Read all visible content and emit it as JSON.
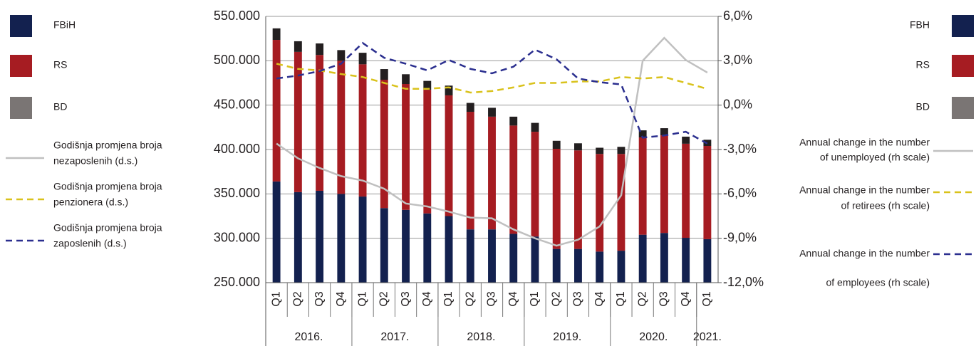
{
  "chart_data": {
    "type": "bar",
    "categories": [
      "Q1",
      "Q2",
      "Q3",
      "Q4",
      "Q1",
      "Q2",
      "Q3",
      "Q4",
      "Q1",
      "Q2",
      "Q3",
      "Q4",
      "Q1",
      "Q2",
      "Q3",
      "Q4",
      "Q1",
      "Q2",
      "Q3",
      "Q4",
      "Q1"
    ],
    "year_groups": [
      {
        "label": "2016.",
        "span": 4
      },
      {
        "label": "2017.",
        "span": 4
      },
      {
        "label": "2018.",
        "span": 4
      },
      {
        "label": "2019.",
        "span": 4
      },
      {
        "label": "2020.",
        "span": 4
      },
      {
        "label": "2021.",
        "span": 1
      }
    ],
    "ylim": [
      250000,
      550000
    ],
    "yticks": [
      {
        "value": 250000,
        "label": "250.000"
      },
      {
        "value": 300000,
        "label": "300.000"
      },
      {
        "value": 350000,
        "label": "350.000"
      },
      {
        "value": 400000,
        "label": "400.000"
      },
      {
        "value": 450000,
        "label": "450.000"
      },
      {
        "value": 500000,
        "label": "500.000"
      },
      {
        "value": 550000,
        "label": "550.000"
      }
    ],
    "y2lim": [
      -12,
      6
    ],
    "y2ticks": [
      {
        "value": -12,
        "label": "-12,0%"
      },
      {
        "value": -9,
        "label": "-9,0%"
      },
      {
        "value": -6,
        "label": "-6,0%"
      },
      {
        "value": -3,
        "label": "-3,0%"
      },
      {
        "value": 0,
        "label": "0,0%"
      },
      {
        "value": 3,
        "label": "3,0%"
      },
      {
        "value": 6,
        "label": "6,0%"
      }
    ],
    "grid": true,
    "series": [
      {
        "name": "FBiH",
        "name_en": "FBH",
        "kind": "bar",
        "color": "#13214f",
        "values": [
          364000,
          352000,
          353500,
          350000,
          347000,
          334000,
          332000,
          328000,
          325000,
          310000,
          310000,
          305000,
          302000,
          288000,
          288000,
          285000,
          286000,
          304000,
          306000,
          300500,
          299000
        ]
      },
      {
        "name": "RS",
        "name_en": "RS",
        "kind": "bar",
        "color": "#a61c22",
        "values": [
          159500,
          158000,
          153000,
          150000,
          149000,
          144600,
          141800,
          139300,
          136000,
          132500,
          127000,
          122000,
          118000,
          112800,
          111000,
          110000,
          109000,
          109600,
          110000,
          106000,
          105000
        ]
      },
      {
        "name": "BD",
        "name_en": "BD",
        "kind": "bar",
        "color": "#231f20",
        "legend_color": "#7a7574",
        "values": [
          13000,
          12000,
          13000,
          12000,
          13000,
          12000,
          11000,
          10000,
          11000,
          10000,
          10000,
          10000,
          10000,
          9000,
          8000,
          7000,
          8000,
          8000,
          8000,
          8000,
          7000
        ]
      },
      {
        "name": [
          "Godišnja promjena broja",
          "nezaposlenih (d.s.)"
        ],
        "name_en": [
          "Annual change in the number",
          "of unemployed (rh scale)"
        ],
        "kind": "line",
        "axis": "y2",
        "color": "#c0c0c0",
        "dashed": false,
        "values": [
          -2.6,
          -3.6,
          -4.25,
          -4.8,
          -5.1,
          -5.65,
          -6.65,
          -6.85,
          -7.2,
          -7.6,
          -7.65,
          -8.4,
          -9.0,
          -9.5,
          -9.1,
          -8.2,
          -6.1,
          3.0,
          4.55,
          3.05,
          2.2
        ]
      },
      {
        "name": [
          "Godišnja promjena broja",
          "penzionera (d.s.)"
        ],
        "name_en": [
          "Annual change in the number",
          "of retirees (rh scale)"
        ],
        "kind": "line",
        "axis": "y2",
        "color": "#d9c21c",
        "dashed": true,
        "values": [
          2.8,
          2.45,
          2.35,
          2.1,
          1.9,
          1.5,
          1.1,
          1.1,
          1.2,
          0.85,
          0.95,
          1.2,
          1.5,
          1.5,
          1.6,
          1.6,
          1.9,
          1.8,
          1.9,
          1.5,
          1.1
        ]
      },
      {
        "name": [
          "Godišnja promjena broja",
          "zaposlenih (d.s.)"
        ],
        "name_en": [
          "Annual change in the number",
          "of employees (rh scale)"
        ],
        "kind": "line",
        "axis": "y2",
        "color": "#2b2f8f",
        "dashed": true,
        "values": [
          1.8,
          2.0,
          2.3,
          2.8,
          4.2,
          3.2,
          2.8,
          2.35,
          3.05,
          2.45,
          2.15,
          2.6,
          3.75,
          3.1,
          1.8,
          1.55,
          1.4,
          -2.2,
          -2.05,
          -1.8,
          -2.6
        ]
      }
    ]
  }
}
